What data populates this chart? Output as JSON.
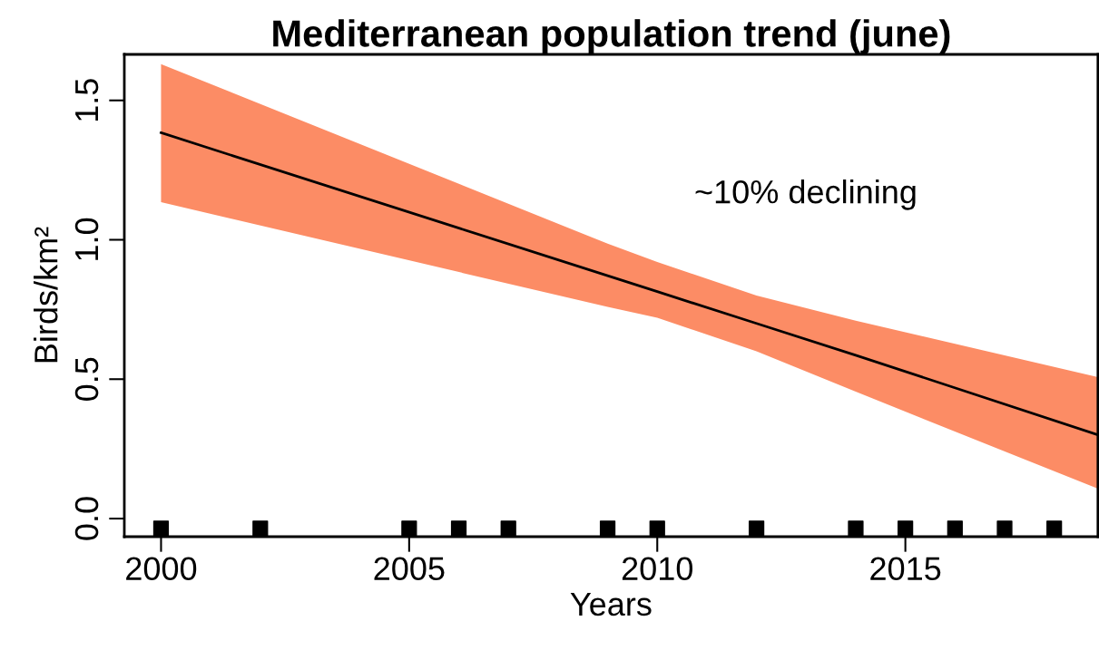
{
  "chart_data": {
    "type": "line",
    "title": "Mediterranean population trend (june)",
    "xlabel": "Years",
    "ylabel": "Birds/km²",
    "xlim": [
      1999.26,
      2018.88
    ],
    "ylim": [
      -0.065,
      1.665
    ],
    "xticks": [
      2000,
      2005,
      2010,
      2015
    ],
    "yticks": [
      {
        "value": 0,
        "label": "0.0"
      },
      {
        "value": 0.5,
        "label": "0.5"
      },
      {
        "value": 1,
        "label": "1.0"
      },
      {
        "value": 1.5,
        "label": "1.5"
      }
    ],
    "grid": false,
    "legend": false,
    "annotations": [
      "~10% declining"
    ],
    "series": [
      {
        "color": "#000000",
        "x": [
          2000,
          2009,
          2010,
          2012,
          2014,
          2018.88
        ],
        "values": [
          1.384,
          0.871,
          0.814,
          0.7,
          0.586,
          0.3
        ],
        "lower": [
          1.135,
          0.759,
          0.72,
          0.6,
          0.455,
          0.107
        ],
        "upper": [
          1.63,
          0.986,
          0.92,
          0.8,
          0.71,
          0.507
        ]
      },
      {
        "type": "scatter",
        "marker": "square",
        "color": "#000000",
        "x": [
          2000,
          2002,
          2005,
          2006,
          2007,
          2009,
          2010,
          2012,
          2014,
          2015,
          2016,
          2017,
          2018
        ],
        "values": [
          -0.035,
          -0.035,
          -0.035,
          -0.035,
          -0.035,
          -0.035,
          -0.035,
          -0.035,
          -0.035,
          -0.035,
          -0.035,
          -0.035,
          -0.035
        ]
      }
    ]
  }
}
